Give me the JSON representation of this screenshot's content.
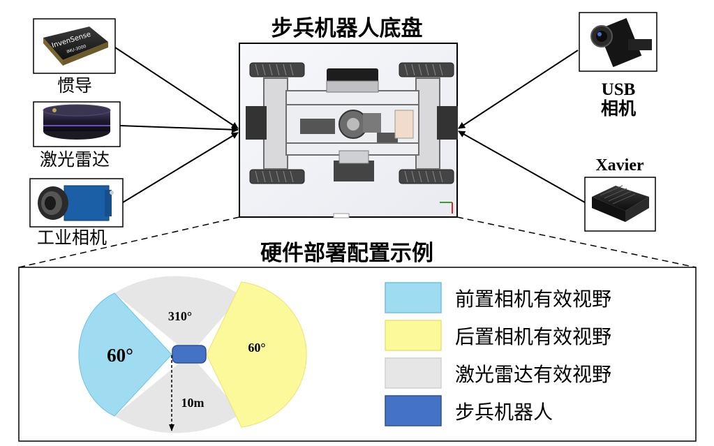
{
  "top_title": "步兵机器人底盘",
  "section_title": "硬件部署配置示例",
  "sensors": [
    {
      "id": "imu",
      "label": "惯导",
      "chip_brand": "InvenSense",
      "chip_model": "IMU-3000"
    },
    {
      "id": "lidar",
      "label": "激光雷达"
    },
    {
      "id": "industrial_camera",
      "label": "工业相机"
    },
    {
      "id": "usb_camera",
      "label_line1": "USB",
      "label_line2": "相机"
    },
    {
      "id": "xavier",
      "label": "Xavier"
    }
  ],
  "fov": {
    "front_angle": "60°",
    "rear_angle": "60°",
    "lidar_angle": "310°",
    "range": "10m"
  },
  "legend": [
    {
      "label": "前置相机有效视野",
      "color": "#9fdcf2"
    },
    {
      "label": "后置相机有效视野",
      "color": "#fbf99a"
    },
    {
      "label": "激光雷达有效视野",
      "color": "#e6e6e6"
    },
    {
      "label": "步兵机器人",
      "color": "#4472c4"
    }
  ],
  "colors": {
    "front_fov": "#9fdcf2",
    "rear_fov": "#fbf99a",
    "lidar_fov": "#e6e6e6",
    "robot": "#4472c4"
  }
}
